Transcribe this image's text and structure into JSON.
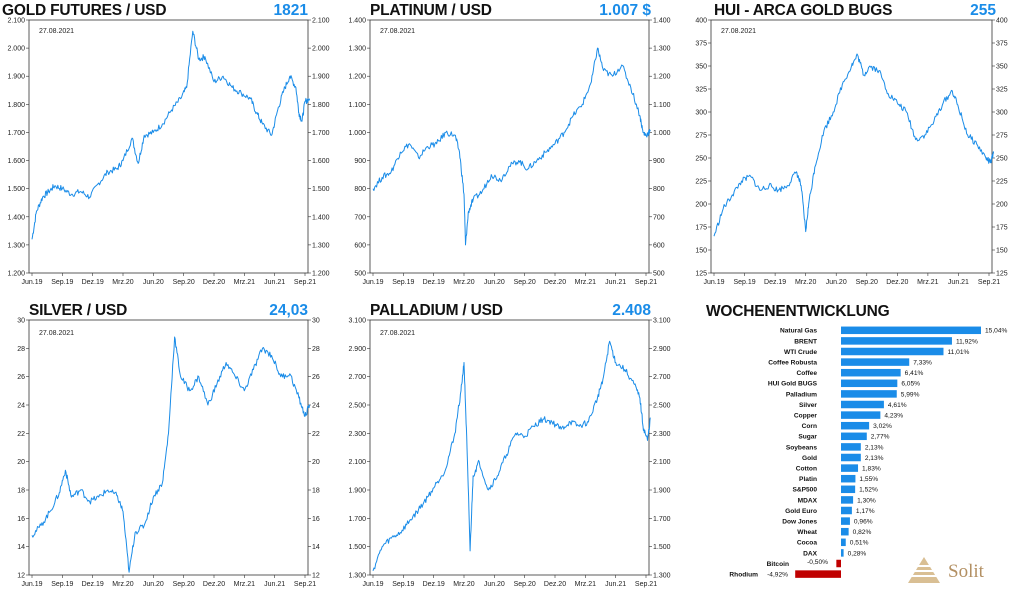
{
  "charts": [
    {
      "id": "gold",
      "title": "GOLD FUTURES / USD",
      "value": "1821",
      "date": "27.08.2021",
      "yticks": [
        "1.200",
        "1.300",
        "1.400",
        "1.500",
        "1.600",
        "1.700",
        "1.800",
        "1.900",
        "2.000",
        "2.100"
      ],
      "yrange": [
        1200,
        2100
      ],
      "xticks": [
        "Jun.19",
        "Sep.19",
        "Dez.19",
        "Mrz.20",
        "Jun.20",
        "Sep.20",
        "Dez.20",
        "Mrz.21",
        "Jun.21",
        "Sep.21"
      ],
      "series": [
        [
          0,
          1320
        ],
        [
          0.15,
          1420
        ],
        [
          0.35,
          1470
        ],
        [
          0.55,
          1490
        ],
        [
          0.75,
          1510
        ],
        [
          1,
          1500
        ],
        [
          1.3,
          1480
        ],
        [
          1.6,
          1490
        ],
        [
          1.9,
          1470
        ],
        [
          2.2,
          1520
        ],
        [
          2.5,
          1560
        ],
        [
          2.8,
          1570
        ],
        [
          3,
          1600
        ],
        [
          3.3,
          1680
        ],
        [
          3.5,
          1590
        ],
        [
          3.7,
          1690
        ],
        [
          4,
          1700
        ],
        [
          4.3,
          1730
        ],
        [
          4.6,
          1780
        ],
        [
          4.9,
          1820
        ],
        [
          5.1,
          1860
        ],
        [
          5.3,
          2060
        ],
        [
          5.5,
          1960
        ],
        [
          5.7,
          1970
        ],
        [
          6,
          1880
        ],
        [
          6.3,
          1900
        ],
        [
          6.6,
          1860
        ],
        [
          6.9,
          1840
        ],
        [
          7.2,
          1820
        ],
        [
          7.4,
          1770
        ],
        [
          7.6,
          1730
        ],
        [
          7.9,
          1690
        ],
        [
          8.1,
          1780
        ],
        [
          8.3,
          1850
        ],
        [
          8.5,
          1900
        ],
        [
          8.7,
          1860
        ],
        [
          8.8,
          1770
        ],
        [
          8.9,
          1740
        ],
        [
          9,
          1810
        ],
        [
          9.15,
          1820
        ]
      ]
    },
    {
      "id": "platinum",
      "title": "PLATINUM / USD",
      "value": "1.007 $",
      "date": "27.08.2021",
      "yticks": [
        "500",
        "600",
        "700",
        "800",
        "900",
        "1.000",
        "1.100",
        "1.200",
        "1.300",
        "1.400"
      ],
      "yrange": [
        500,
        1400
      ],
      "xticks": [
        "Jun.19",
        "Sep.19",
        "Dez.19",
        "Mrz.20",
        "Jun.20",
        "Sep.20",
        "Dez.20",
        "Mrz.21",
        "Jun.21",
        "Sep.21"
      ],
      "series": [
        [
          0,
          800
        ],
        [
          0.3,
          840
        ],
        [
          0.6,
          860
        ],
        [
          0.9,
          930
        ],
        [
          1.2,
          960
        ],
        [
          1.5,
          910
        ],
        [
          1.8,
          950
        ],
        [
          2.1,
          960
        ],
        [
          2.4,
          1000
        ],
        [
          2.7,
          990
        ],
        [
          2.85,
          930
        ],
        [
          3,
          780
        ],
        [
          3.05,
          600
        ],
        [
          3.15,
          720
        ],
        [
          3.3,
          760
        ],
        [
          3.6,
          790
        ],
        [
          3.9,
          850
        ],
        [
          4.2,
          830
        ],
        [
          4.5,
          880
        ],
        [
          4.8,
          900
        ],
        [
          5.1,
          870
        ],
        [
          5.4,
          900
        ],
        [
          5.7,
          930
        ],
        [
          6,
          960
        ],
        [
          6.3,
          1000
        ],
        [
          6.6,
          1060
        ],
        [
          6.9,
          1100
        ],
        [
          7.2,
          1180
        ],
        [
          7.4,
          1300
        ],
        [
          7.6,
          1220
        ],
        [
          7.9,
          1200
        ],
        [
          8.2,
          1240
        ],
        [
          8.5,
          1160
        ],
        [
          8.8,
          1060
        ],
        [
          8.9,
          1000
        ],
        [
          9,
          990
        ],
        [
          9.15,
          1007
        ]
      ]
    },
    {
      "id": "hui",
      "title": "HUI - ARCA GOLD BUGS",
      "value": "255",
      "date": "27.08.2021",
      "yticks": [
        "125",
        "150",
        "175",
        "200",
        "225",
        "250",
        "275",
        "300",
        "325",
        "350",
        "375",
        "400"
      ],
      "yrange": [
        125,
        400
      ],
      "xticks": [
        "Jun.19",
        "Sep.19",
        "Dez.19",
        "Mrz.20",
        "Jun.20",
        "Sep.20",
        "Dez.20",
        "Mrz.21",
        "Jun.21",
        "Sep.21"
      ],
      "series": [
        [
          0,
          165
        ],
        [
          0.3,
          195
        ],
        [
          0.6,
          210
        ],
        [
          0.9,
          225
        ],
        [
          1.2,
          230
        ],
        [
          1.5,
          215
        ],
        [
          1.8,
          220
        ],
        [
          2.1,
          215
        ],
        [
          2.4,
          220
        ],
        [
          2.7,
          235
        ],
        [
          2.85,
          220
        ],
        [
          3,
          170
        ],
        [
          3.1,
          200
        ],
        [
          3.3,
          240
        ],
        [
          3.6,
          280
        ],
        [
          3.9,
          300
        ],
        [
          4.2,
          330
        ],
        [
          4.5,
          350
        ],
        [
          4.7,
          362
        ],
        [
          4.9,
          340
        ],
        [
          5.1,
          350
        ],
        [
          5.4,
          345
        ],
        [
          5.7,
          320
        ],
        [
          6,
          310
        ],
        [
          6.3,
          300
        ],
        [
          6.6,
          270
        ],
        [
          6.9,
          275
        ],
        [
          7.2,
          290
        ],
        [
          7.5,
          310
        ],
        [
          7.8,
          323
        ],
        [
          8,
          305
        ],
        [
          8.3,
          275
        ],
        [
          8.6,
          265
        ],
        [
          8.9,
          250
        ],
        [
          9.05,
          245
        ],
        [
          9.15,
          255
        ]
      ]
    },
    {
      "id": "silver",
      "title": "SILVER / USD",
      "value": "24,03",
      "date": "27.08.2021",
      "yticks": [
        "12",
        "14",
        "16",
        "18",
        "20",
        "22",
        "24",
        "26",
        "28",
        "30"
      ],
      "yrange": [
        12,
        30
      ],
      "xticks": [
        "Jun.19",
        "Sep.19",
        "Dez.19",
        "Mrz.20",
        "Jun.20",
        "Sep.20",
        "Dez.20",
        "Mrz.21",
        "Jun.21",
        "Sep.21"
      ],
      "series": [
        [
          0,
          14.8
        ],
        [
          0.3,
          15.5
        ],
        [
          0.6,
          16.5
        ],
        [
          0.9,
          17.8
        ],
        [
          1.1,
          19.4
        ],
        [
          1.3,
          17.5
        ],
        [
          1.6,
          18
        ],
        [
          1.9,
          17.2
        ],
        [
          2.2,
          17.5
        ],
        [
          2.5,
          18
        ],
        [
          2.8,
          17.6
        ],
        [
          3,
          16.5
        ],
        [
          3.2,
          12.2
        ],
        [
          3.4,
          15
        ],
        [
          3.7,
          15.5
        ],
        [
          4,
          17.5
        ],
        [
          4.3,
          18.5
        ],
        [
          4.5,
          22
        ],
        [
          4.7,
          28.8
        ],
        [
          4.9,
          26
        ],
        [
          5.2,
          25
        ],
        [
          5.5,
          26
        ],
        [
          5.8,
          24
        ],
        [
          6.1,
          25.5
        ],
        [
          6.4,
          27
        ],
        [
          6.7,
          26
        ],
        [
          7,
          25
        ],
        [
          7.3,
          26.5
        ],
        [
          7.6,
          28
        ],
        [
          7.9,
          27.5
        ],
        [
          8.2,
          26
        ],
        [
          8.5,
          26.2
        ],
        [
          8.8,
          24.5
        ],
        [
          9,
          23.2
        ],
        [
          9.15,
          24.03
        ]
      ]
    },
    {
      "id": "palladium",
      "title": "PALLADIUM / USD",
      "value": "2.408",
      "date": "27.08.2021",
      "yticks": [
        "1.300",
        "1.500",
        "1.700",
        "1.900",
        "2.100",
        "2.300",
        "2.500",
        "2.700",
        "2.900",
        "3.100"
      ],
      "yrange": [
        1300,
        3100
      ],
      "xticks": [
        "Jun.19",
        "Sep.19",
        "Dez.19",
        "Mrz.20",
        "Jun.20",
        "Sep.20",
        "Dez.20",
        "Mrz.21",
        "Jun.21",
        "Sep.21"
      ],
      "series": [
        [
          0,
          1330
        ],
        [
          0.3,
          1500
        ],
        [
          0.6,
          1560
        ],
        [
          0.9,
          1600
        ],
        [
          1.2,
          1680
        ],
        [
          1.5,
          1760
        ],
        [
          1.8,
          1850
        ],
        [
          2.1,
          1950
        ],
        [
          2.4,
          2050
        ],
        [
          2.7,
          2300
        ],
        [
          2.9,
          2600
        ],
        [
          3,
          2800
        ],
        [
          3.1,
          2200
        ],
        [
          3.2,
          1470
        ],
        [
          3.3,
          2000
        ],
        [
          3.5,
          2100
        ],
        [
          3.8,
          1900
        ],
        [
          4.1,
          2000
        ],
        [
          4.4,
          2150
        ],
        [
          4.7,
          2300
        ],
        [
          5,
          2280
        ],
        [
          5.3,
          2350
        ],
        [
          5.6,
          2400
        ],
        [
          5.9,
          2380
        ],
        [
          6.2,
          2330
        ],
        [
          6.5,
          2380
        ],
        [
          6.8,
          2350
        ],
        [
          7.1,
          2380
        ],
        [
          7.4,
          2550
        ],
        [
          7.6,
          2700
        ],
        [
          7.8,
          2950
        ],
        [
          8,
          2800
        ],
        [
          8.3,
          2750
        ],
        [
          8.6,
          2650
        ],
        [
          8.8,
          2550
        ],
        [
          8.9,
          2350
        ],
        [
          9.05,
          2250
        ],
        [
          9.15,
          2408
        ]
      ]
    }
  ],
  "wochen": {
    "title": "WOCHENENTWICKLUNG",
    "items": [
      {
        "label": "Natural Gas",
        "value": 15.04,
        "text": "15,04%"
      },
      {
        "label": "BRENT",
        "value": 11.92,
        "text": "11,92%"
      },
      {
        "label": "WTI Crude",
        "value": 11.01,
        "text": "11,01%"
      },
      {
        "label": "Coffee Robusta",
        "value": 7.33,
        "text": "7,33%"
      },
      {
        "label": "Coffee",
        "value": 6.41,
        "text": "6,41%"
      },
      {
        "label": "HUI Gold BUGS",
        "value": 6.05,
        "text": "6,05%"
      },
      {
        "label": "Palladium",
        "value": 5.99,
        "text": "5,99%"
      },
      {
        "label": "Silver",
        "value": 4.61,
        "text": "4,61%"
      },
      {
        "label": "Copper",
        "value": 4.23,
        "text": "4,23%"
      },
      {
        "label": "Corn",
        "value": 3.02,
        "text": "3,02%"
      },
      {
        "label": "Sugar",
        "value": 2.77,
        "text": "2,77%"
      },
      {
        "label": "Soybeans",
        "value": 2.13,
        "text": "2,13%"
      },
      {
        "label": "Gold",
        "value": 2.13,
        "text": "2,13%"
      },
      {
        "label": "Cotton",
        "value": 1.83,
        "text": "1,83%"
      },
      {
        "label": "Platin",
        "value": 1.55,
        "text": "1,55%"
      },
      {
        "label": "S&P500",
        "value": 1.52,
        "text": "1,52%"
      },
      {
        "label": "MDAX",
        "value": 1.3,
        "text": "1,30%"
      },
      {
        "label": "Gold Euro",
        "value": 1.17,
        "text": "1,17%"
      },
      {
        "label": "Dow Jones",
        "value": 0.96,
        "text": "0,96%"
      },
      {
        "label": "Wheat",
        "value": 0.82,
        "text": "0,82%"
      },
      {
        "label": "Cocoa",
        "value": 0.51,
        "text": "0,51%"
      },
      {
        "label": "DAX",
        "value": 0.28,
        "text": "0,28%"
      },
      {
        "label": "Bitcoin",
        "value": -0.5,
        "text": "-0,50%"
      },
      {
        "label": "Rhodium",
        "value": -4.92,
        "text": "-4,92%"
      }
    ]
  },
  "chart_data": [
    {
      "type": "line",
      "title": "GOLD FUTURES / USD",
      "ylim": [
        1200,
        2100
      ],
      "x": [
        "Jun.19",
        "Sep.19",
        "Dez.19",
        "Mrz.20",
        "Jun.20",
        "Sep.20",
        "Dez.20",
        "Mrz.21",
        "Jun.21",
        "Sep.21"
      ],
      "last": 1821
    },
    {
      "type": "line",
      "title": "PLATINUM / USD",
      "ylim": [
        500,
        1400
      ],
      "x": [
        "Jun.19",
        "Sep.19",
        "Dez.19",
        "Mrz.20",
        "Jun.20",
        "Sep.20",
        "Dez.20",
        "Mrz.21",
        "Jun.21",
        "Sep.21"
      ],
      "last": 1007
    },
    {
      "type": "line",
      "title": "HUI - ARCA GOLD BUGS",
      "ylim": [
        125,
        400
      ],
      "x": [
        "Jun.19",
        "Sep.19",
        "Dez.19",
        "Mrz.20",
        "Jun.20",
        "Sep.20",
        "Dez.20",
        "Mrz.21",
        "Jun.21",
        "Sep.21"
      ],
      "last": 255
    },
    {
      "type": "line",
      "title": "SILVER / USD",
      "ylim": [
        12,
        30
      ],
      "x": [
        "Jun.19",
        "Sep.19",
        "Dez.19",
        "Mrz.20",
        "Jun.20",
        "Sep.20",
        "Dez.20",
        "Mrz.21",
        "Jun.21",
        "Sep.21"
      ],
      "last": 24.03
    },
    {
      "type": "line",
      "title": "PALLADIUM / USD",
      "ylim": [
        1300,
        3100
      ],
      "x": [
        "Jun.19",
        "Sep.19",
        "Dez.19",
        "Mrz.20",
        "Jun.20",
        "Sep.20",
        "Dez.20",
        "Mrz.21",
        "Jun.21",
        "Sep.21"
      ],
      "last": 2408
    },
    {
      "type": "bar",
      "title": "WOCHENENTWICKLUNG",
      "categories": [
        "Natural Gas",
        "BRENT",
        "WTI Crude",
        "Coffee Robusta",
        "Coffee",
        "HUI Gold BUGS",
        "Palladium",
        "Silver",
        "Copper",
        "Corn",
        "Sugar",
        "Soybeans",
        "Gold",
        "Cotton",
        "Platin",
        "S&P500",
        "MDAX",
        "Gold Euro",
        "Dow Jones",
        "Wheat",
        "Cocoa",
        "DAX",
        "Bitcoin",
        "Rhodium"
      ],
      "values": [
        15.04,
        11.92,
        11.01,
        7.33,
        6.41,
        6.05,
        5.99,
        4.61,
        4.23,
        3.02,
        2.77,
        2.13,
        2.13,
        1.83,
        1.55,
        1.52,
        1.3,
        1.17,
        0.96,
        0.82,
        0.51,
        0.28,
        -0.5,
        -4.92
      ]
    }
  ],
  "colors": {
    "line": "#1a8ce8",
    "pos_bar": "#1a8ce8",
    "neg_bar": "#c00000",
    "logo": "#b39063"
  },
  "logo": {
    "text": "Solit"
  }
}
